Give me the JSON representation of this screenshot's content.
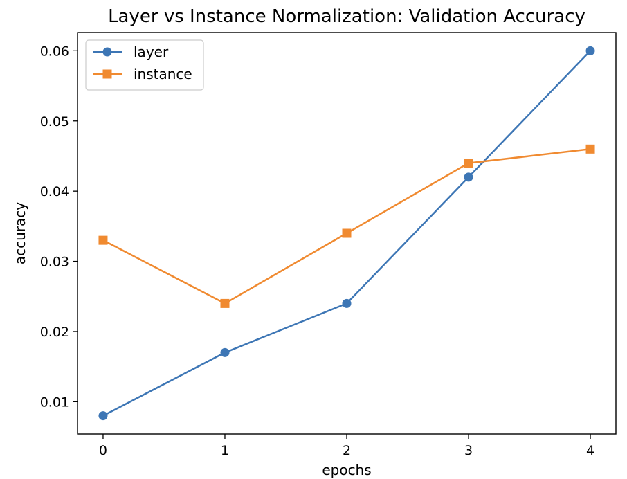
{
  "chart_data": {
    "type": "line",
    "title": "Layer vs Instance Normalization: Validation Accuracy",
    "xlabel": "epochs",
    "ylabel": "accuracy",
    "x": [
      0,
      1,
      2,
      3,
      4
    ],
    "xticks": [
      "0",
      "1",
      "2",
      "3",
      "4"
    ],
    "yticks": [
      "0.01",
      "0.02",
      "0.03",
      "0.04",
      "0.05",
      "0.06"
    ],
    "xlim": [
      -0.21,
      4.21
    ],
    "ylim": [
      0.0054,
      0.0626
    ],
    "grid": false,
    "legend_position": "top-left",
    "series": [
      {
        "name": "layer",
        "marker": "circle",
        "color": "#3d76b5",
        "values": [
          0.008,
          0.017,
          0.024,
          0.042,
          0.06
        ]
      },
      {
        "name": "instance",
        "marker": "square",
        "color": "#f08a30",
        "values": [
          0.033,
          0.024,
          0.034,
          0.044,
          0.046
        ]
      }
    ]
  }
}
